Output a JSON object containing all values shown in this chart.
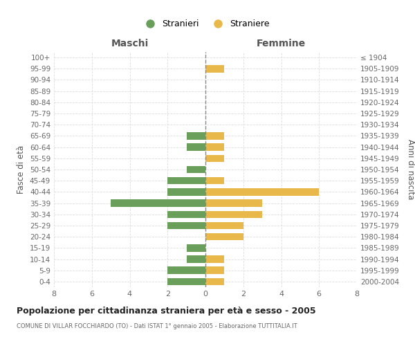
{
  "age_groups": [
    "100+",
    "95-99",
    "90-94",
    "85-89",
    "80-84",
    "75-79",
    "70-74",
    "65-69",
    "60-64",
    "55-59",
    "50-54",
    "45-49",
    "40-44",
    "35-39",
    "30-34",
    "25-29",
    "20-24",
    "15-19",
    "10-14",
    "5-9",
    "0-4"
  ],
  "birth_years": [
    "≤ 1904",
    "1905-1909",
    "1910-1914",
    "1915-1919",
    "1920-1924",
    "1925-1929",
    "1930-1934",
    "1935-1939",
    "1940-1944",
    "1945-1949",
    "1950-1954",
    "1955-1959",
    "1960-1964",
    "1965-1969",
    "1970-1974",
    "1975-1979",
    "1980-1984",
    "1985-1989",
    "1990-1994",
    "1995-1999",
    "2000-2004"
  ],
  "maschi": [
    0,
    0,
    0,
    0,
    0,
    0,
    0,
    1,
    1,
    0,
    1,
    2,
    2,
    5,
    2,
    2,
    0,
    1,
    1,
    2,
    2
  ],
  "femmine": [
    0,
    1,
    0,
    0,
    0,
    0,
    0,
    1,
    1,
    1,
    0,
    1,
    6,
    3,
    3,
    2,
    2,
    0,
    1,
    1,
    1
  ],
  "color_maschi": "#6a9e5b",
  "color_femmine": "#e8b84b",
  "title": "Popolazione per cittadinanza straniera per età e sesso - 2005",
  "subtitle": "COMUNE DI VILLAR FOCCHIARDO (TO) - Dati ISTAT 1° gennaio 2005 - Elaborazione TUTTITALIA.IT",
  "legend_maschi": "Stranieri",
  "legend_femmine": "Straniere",
  "xlabel_left": "Maschi",
  "xlabel_right": "Femmine",
  "ylabel_left": "Fasce di età",
  "ylabel_right": "Anni di nascita",
  "xlim": 8,
  "background_color": "#ffffff",
  "grid_color": "#cccccc",
  "grid_color_h": "#dddddd"
}
